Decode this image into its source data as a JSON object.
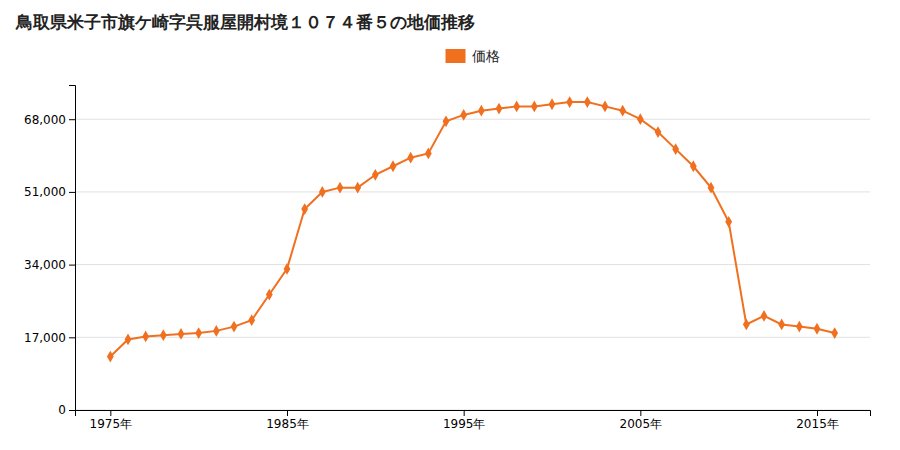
{
  "chart_data": {
    "type": "line",
    "title": "鳥取県米子市旗ケ崎字呉服屋開村境１０７４番５の地価推移",
    "x": [
      1975,
      1976,
      1977,
      1978,
      1979,
      1980,
      1981,
      1982,
      1983,
      1984,
      1985,
      1986,
      1987,
      1988,
      1989,
      1990,
      1991,
      1992,
      1993,
      1994,
      1995,
      1996,
      1997,
      1998,
      1999,
      2000,
      2001,
      2002,
      2003,
      2004,
      2005,
      2006,
      2007,
      2008,
      2009,
      2010,
      2011,
      2012,
      2013,
      2014,
      2015,
      2016
    ],
    "series": [
      {
        "name": "価格",
        "color": "#f07020",
        "marker": "diamond",
        "values": [
          12500,
          16500,
          17200,
          17500,
          17800,
          18000,
          18500,
          19500,
          21000,
          27000,
          33000,
          47000,
          51000,
          52000,
          52000,
          55000,
          57000,
          59000,
          60000,
          67500,
          69000,
          70000,
          70500,
          71000,
          71000,
          71500,
          72000,
          72000,
          71000,
          70000,
          68000,
          65000,
          61000,
          57000,
          52000,
          44000,
          20000,
          22000,
          20000,
          19500,
          19000,
          18000
        ]
      }
    ],
    "xlim": [
      1973,
      2018
    ],
    "xticks": [
      {
        "value": 1975,
        "label": "1975年"
      },
      {
        "value": 1985,
        "label": "1985年"
      },
      {
        "value": 1995,
        "label": "1995年"
      },
      {
        "value": 2005,
        "label": "2005年"
      },
      {
        "value": 2015,
        "label": "2015年"
      }
    ],
    "ylim": [
      0,
      76000
    ],
    "yticks": [
      0,
      {
        "value": 17000,
        "label": "17,000"
      },
      {
        "value": 34000,
        "label": "34,000"
      },
      {
        "value": 51000,
        "label": "51,000"
      },
      {
        "value": 68000,
        "label": "68,000"
      }
    ],
    "grid": true,
    "legend": "top"
  }
}
